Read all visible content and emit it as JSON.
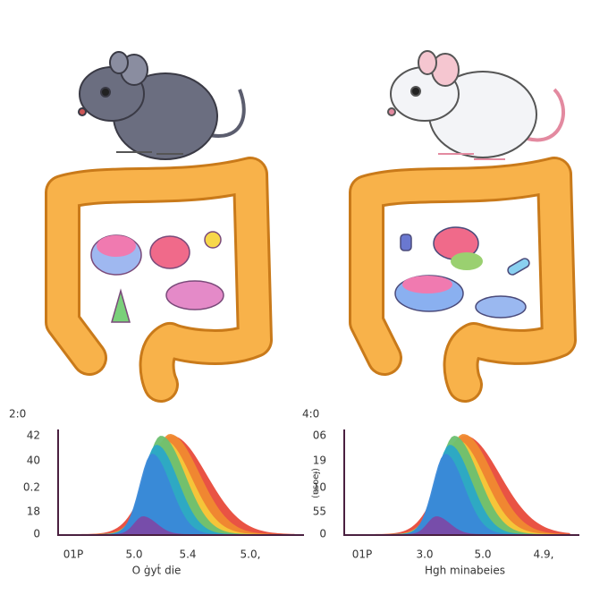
{
  "panels": [
    {
      "y_labels": [
        "2:0",
        "42",
        "40",
        "0.2",
        "18",
        "0"
      ],
      "x_labels": [
        "01P",
        "5.0",
        "5.4",
        "5.0,"
      ],
      "caption": "O ġyt́ die"
    },
    {
      "y_labels": [
        "4:0",
        "06",
        "19",
        "10",
        "55",
        "0"
      ],
      "y_axis_title": "(ɐsoeɟ)",
      "x_labels": [
        "01P",
        "3.0",
        "5.0",
        "4.9,"
      ],
      "caption": "Hgh minabeies"
    }
  ]
}
